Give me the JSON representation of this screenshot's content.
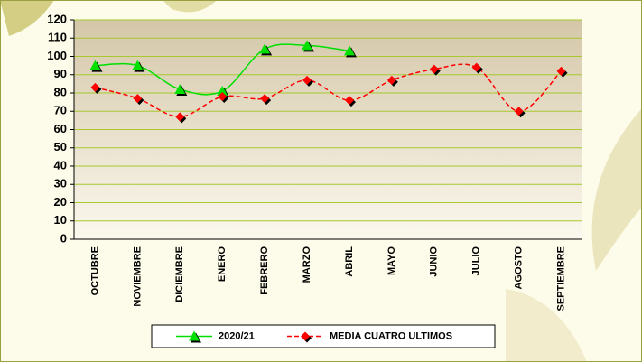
{
  "chart_data": {
    "type": "line",
    "categories": [
      "OCTUBRE",
      "NOVIEMBRE",
      "DICIEMBRE",
      "ENERO",
      "FEBRERO",
      "MARZO",
      "ABRIL",
      "MAYO",
      "JUNIO",
      "JULIO",
      "AGOSTO",
      "SEPTIEMBRE"
    ],
    "series": [
      {
        "name": "2020/21",
        "color": "#00e000",
        "values": [
          95,
          95,
          82,
          81,
          104,
          106,
          103,
          null,
          null,
          null,
          null,
          null
        ]
      },
      {
        "name": "MEDIA CUATRO ULTIMOS",
        "color": "#ff0000",
        "values": [
          83,
          77,
          67,
          78,
          77,
          87,
          76,
          87,
          93,
          94,
          70,
          92
        ]
      }
    ],
    "ylim": [
      0,
      120
    ],
    "yticks": [
      0,
      10,
      20,
      30,
      40,
      50,
      60,
      70,
      80,
      90,
      100,
      110,
      120
    ],
    "grid": true,
    "legend": "bottom"
  }
}
